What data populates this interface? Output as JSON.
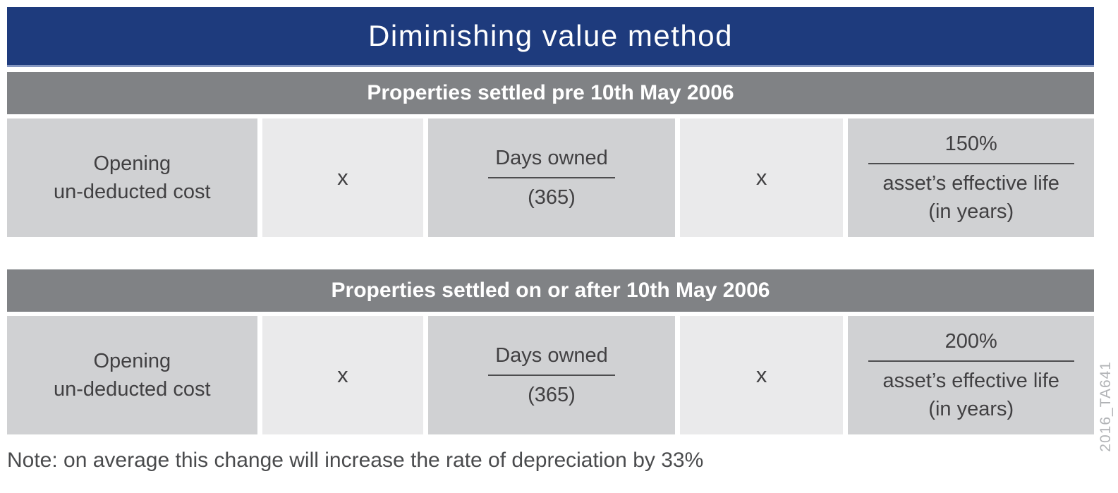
{
  "title": "Diminishing value method",
  "sections": [
    {
      "header": "Properties settled pre 10th May 2006",
      "operand": {
        "line1": "Opening",
        "line2": "un-deducted cost"
      },
      "multiply1": "x",
      "days_fraction": {
        "numerator": "Days owned",
        "denominator": "(365)"
      },
      "multiply2": "x",
      "rate_fraction": {
        "numerator": "150%",
        "denominator_line1": "asset’s effective life",
        "denominator_line2": "(in years)"
      }
    },
    {
      "header": "Properties settled on or after 10th May 2006",
      "operand": {
        "line1": "Opening",
        "line2": "un-deducted cost"
      },
      "multiply1": "x",
      "days_fraction": {
        "numerator": "Days owned",
        "denominator": "(365)"
      },
      "multiply2": "x",
      "rate_fraction": {
        "numerator": "200%",
        "denominator_line1": "asset’s effective life",
        "denominator_line2": "(in years)"
      }
    }
  ],
  "note": "Note: on average this change will increase the rate of depreciation by 33%",
  "watermark": "2016_TA641",
  "colors": {
    "title_bg": "#1e3b7d",
    "title_underline": "#8496c1",
    "section_header_bg": "#808285",
    "operand_cell_bg": "#d0d1d3",
    "multiply_cell_bg": "#eaeaeb",
    "text": "#414042",
    "header_text": "#ffffff",
    "watermark_text": "#b1b3b6"
  }
}
